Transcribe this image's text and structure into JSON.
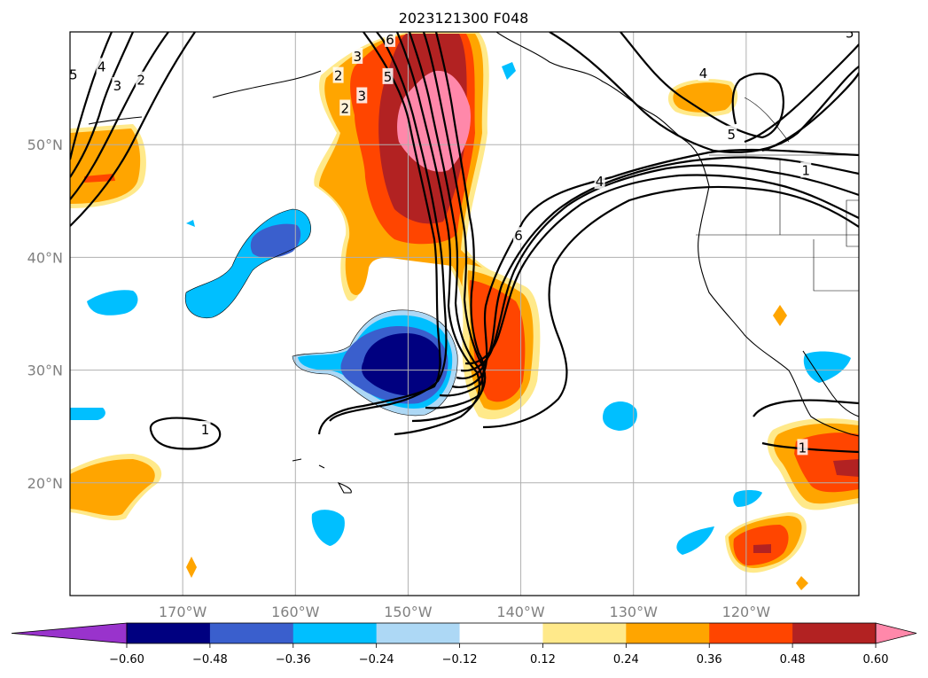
{
  "title": "2023121300 F048",
  "map": {
    "lon_range": [
      -180,
      -110
    ],
    "lat_range": [
      10,
      60
    ],
    "gridlines": true,
    "lon_ticks": [
      {
        "value": -170,
        "label": "170°W"
      },
      {
        "value": -160,
        "label": "160°W"
      },
      {
        "value": -150,
        "label": "150°W"
      },
      {
        "value": -140,
        "label": "140°W"
      },
      {
        "value": -130,
        "label": "130°W"
      },
      {
        "value": -120,
        "label": "120°W"
      }
    ],
    "lat_ticks": [
      {
        "value": 20,
        "label": "20°N"
      },
      {
        "value": 30,
        "label": "30°N"
      },
      {
        "value": 40,
        "label": "40°N"
      },
      {
        "value": 50,
        "label": "50°N"
      }
    ],
    "contour_labels": [
      {
        "text": "1",
        "lon": -168,
        "lat": 24.7
      },
      {
        "text": "2",
        "lon": -156.2,
        "lat": 56.1
      },
      {
        "text": "3",
        "lon": -154.5,
        "lat": 57.8
      },
      {
        "text": "5",
        "lon": -151.8,
        "lat": 56.0
      },
      {
        "text": "2",
        "lon": -155.6,
        "lat": 53.2
      },
      {
        "text": "3",
        "lon": -154.1,
        "lat": 54.3
      },
      {
        "text": "6",
        "lon": -140.2,
        "lat": 41.9
      },
      {
        "text": "4",
        "lon": -133.0,
        "lat": 46.7
      },
      {
        "text": "4",
        "lon": -123.8,
        "lat": 56.3
      },
      {
        "text": "5",
        "lon": -121.3,
        "lat": 50.9
      },
      {
        "text": "1",
        "lon": -114.7,
        "lat": 47.7
      },
      {
        "text": "1",
        "lon": -115.0,
        "lat": 23.1
      },
      {
        "text": "4",
        "lon": -177.2,
        "lat": 56.9
      },
      {
        "text": "3",
        "lon": -175.8,
        "lat": 55.2
      },
      {
        "text": "2",
        "lon": -173.7,
        "lat": 55.7
      },
      {
        "text": "5",
        "lon": -179.7,
        "lat": 56.2
      },
      {
        "text": "5",
        "lon": -110.8,
        "lat": 59.9
      },
      {
        "text": "6",
        "lon": -151.6,
        "lat": 59.3
      }
    ]
  },
  "colorbar": {
    "ticks": [
      "−0.60",
      "−0.48",
      "−0.36",
      "−0.24",
      "−0.12",
      "0.12",
      "0.24",
      "0.36",
      "0.48",
      "0.60"
    ],
    "colors": [
      "#9933cc",
      "#000080",
      "#3a5fcd",
      "#00bfff",
      "#add8f5",
      "#ffffff",
      "#ffe98a",
      "#ffa500",
      "#ff4500",
      "#b22222",
      "#ff88aa"
    ]
  }
}
